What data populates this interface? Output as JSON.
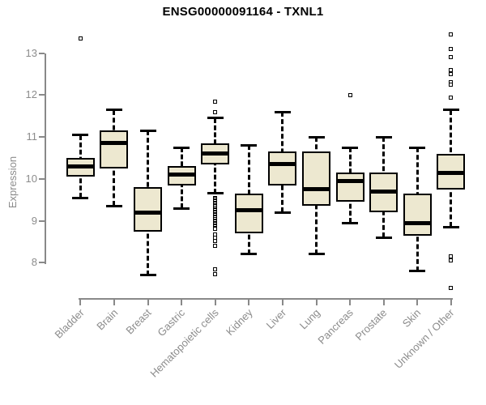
{
  "colors": {
    "background": "#ffffff",
    "box_fill": "#ede8d0",
    "box_border": "#000000",
    "axis": "#898989",
    "tick_label": "#8c8c8c",
    "title": "#000000"
  },
  "chart_data": {
    "type": "boxplot",
    "title": "ENSG00000091164 - TXNL1",
    "ylabel": "Expression",
    "xlabel": "",
    "ylim": [
      8,
      13
    ],
    "yticks": [
      8,
      9,
      10,
      11,
      12,
      13
    ],
    "grid": false,
    "legend": false,
    "categories": [
      "Bladder",
      "Brain",
      "Breast",
      "Gastric",
      "Hematopoietic cells",
      "Kidney",
      "Liver",
      "Lung",
      "Pancreas",
      "Prostate",
      "Skin",
      "Unknown / Other"
    ],
    "series": [
      {
        "category": "Bladder",
        "whisker_low": 9.55,
        "q1": 10.05,
        "median": 10.3,
        "q3": 10.5,
        "whisker_high": 11.05,
        "outliers": [
          13.35
        ]
      },
      {
        "category": "Brain",
        "whisker_low": 9.35,
        "q1": 10.25,
        "median": 10.85,
        "q3": 11.15,
        "whisker_high": 11.65,
        "outliers": []
      },
      {
        "category": "Breast",
        "whisker_low": 7.7,
        "q1": 8.75,
        "median": 9.2,
        "q3": 9.8,
        "whisker_high": 11.15,
        "outliers": []
      },
      {
        "category": "Gastric",
        "whisker_low": 9.3,
        "q1": 9.85,
        "median": 10.1,
        "q3": 10.3,
        "whisker_high": 10.75,
        "outliers": []
      },
      {
        "category": "Hematopoietic cells",
        "whisker_low": 9.65,
        "q1": 10.35,
        "median": 10.6,
        "q3": 10.85,
        "whisker_high": 11.45,
        "outliers": [
          11.85,
          11.6,
          9.55,
          9.52,
          9.49,
          9.46,
          9.43,
          9.4,
          9.37,
          9.34,
          9.31,
          9.28,
          9.25,
          9.22,
          9.19,
          9.16,
          9.13,
          9.1,
          9.07,
          9.04,
          9.01,
          8.98,
          8.95,
          8.92,
          8.89,
          8.86,
          8.83,
          8.8,
          8.68,
          8.6,
          8.51,
          8.41,
          7.85,
          7.72
        ]
      },
      {
        "category": "Kidney",
        "whisker_low": 8.2,
        "q1": 8.7,
        "median": 9.25,
        "q3": 9.65,
        "whisker_high": 10.8,
        "outliers": []
      },
      {
        "category": "Liver",
        "whisker_low": 9.2,
        "q1": 9.85,
        "median": 10.35,
        "q3": 10.65,
        "whisker_high": 11.6,
        "outliers": []
      },
      {
        "category": "Lung",
        "whisker_low": 8.2,
        "q1": 9.35,
        "median": 9.75,
        "q3": 10.65,
        "whisker_high": 11.0,
        "outliers": []
      },
      {
        "category": "Pancreas",
        "whisker_low": 8.95,
        "q1": 9.45,
        "median": 9.95,
        "q3": 10.15,
        "whisker_high": 10.75,
        "outliers": [
          12.0
        ]
      },
      {
        "category": "Prostate",
        "whisker_low": 8.6,
        "q1": 9.2,
        "median": 9.7,
        "q3": 10.15,
        "whisker_high": 11.0,
        "outliers": []
      },
      {
        "category": "Skin",
        "whisker_low": 7.8,
        "q1": 8.65,
        "median": 8.95,
        "q3": 9.65,
        "whisker_high": 10.75,
        "outliers": []
      },
      {
        "category": "Unknown / Other",
        "whisker_low": 8.85,
        "q1": 9.75,
        "median": 10.15,
        "q3": 10.6,
        "whisker_high": 11.65,
        "outliers": [
          13.45,
          13.1,
          12.9,
          12.6,
          12.5,
          12.3,
          12.25,
          11.95,
          8.15,
          8.05,
          7.4
        ]
      }
    ]
  }
}
